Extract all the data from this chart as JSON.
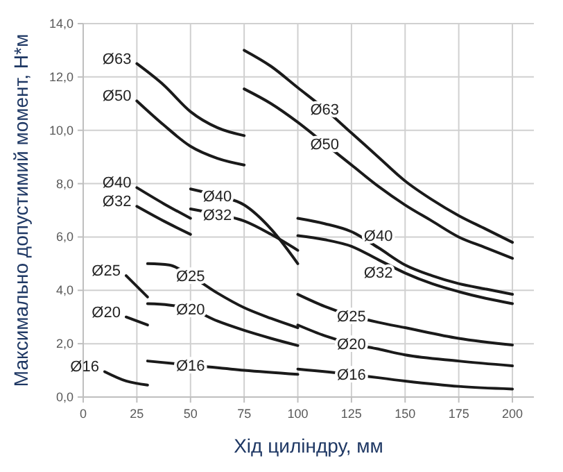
{
  "chart_data": {
    "type": "line",
    "xlabel": "Хід циліндру, мм",
    "ylabel": "Максимально допустимий момент, Н*м",
    "xlim": [
      0,
      210
    ],
    "xticks": [
      0,
      25,
      50,
      75,
      100,
      125,
      150,
      175,
      200
    ],
    "ylim": [
      0,
      14
    ],
    "yticks": [
      {
        "value": 0,
        "label": "0,0"
      },
      {
        "value": 2,
        "label": "2,0"
      },
      {
        "value": 4,
        "label": "4,0"
      },
      {
        "value": 6,
        "label": "6,0"
      },
      {
        "value": 8,
        "label": "8,0"
      },
      {
        "value": 10,
        "label": "10,0"
      },
      {
        "value": 12,
        "label": "12,0"
      },
      {
        "value": 14,
        "label": "14,0"
      }
    ],
    "grid": true,
    "line_style": "solid",
    "marker": "none",
    "series": [
      {
        "name": "Ø63",
        "color": "#1a1a1a",
        "x": [
          25,
          37.5,
          50,
          62.5,
          75
        ],
        "values": [
          12.5,
          11.7,
          10.7,
          10.1,
          9.8
        ]
      },
      {
        "name": "Ø63",
        "color": "#1a1a1a",
        "x": [
          75,
          87.5,
          100,
          112.5,
          125,
          137.5,
          150,
          162.5,
          175,
          187.5,
          200
        ],
        "values": [
          13.0,
          12.4,
          11.6,
          10.8,
          9.9,
          9.0,
          8.1,
          7.4,
          6.8,
          6.3,
          5.8
        ]
      },
      {
        "name": "Ø50",
        "color": "#1a1a1a",
        "x": [
          25,
          37.5,
          50,
          62.5,
          75
        ],
        "values": [
          11.1,
          10.2,
          9.4,
          8.95,
          8.7
        ]
      },
      {
        "name": "Ø50",
        "color": "#1a1a1a",
        "x": [
          75,
          87.5,
          100,
          112.5,
          125,
          137.5,
          150,
          162.5,
          175,
          187.5,
          200
        ],
        "values": [
          11.55,
          11.0,
          10.3,
          9.5,
          8.7,
          7.9,
          7.2,
          6.6,
          6.0,
          5.6,
          5.2
        ]
      },
      {
        "name": "Ø40",
        "color": "#1a1a1a",
        "x": [
          25,
          37.5,
          50
        ],
        "values": [
          7.85,
          7.25,
          6.7
        ]
      },
      {
        "name": "Ø40",
        "color": "#1a1a1a",
        "x": [
          50,
          62.5,
          75,
          87.5,
          100
        ],
        "values": [
          7.8,
          7.55,
          7.2,
          6.3,
          5.0
        ]
      },
      {
        "name": "Ø40",
        "color": "#1a1a1a",
        "x": [
          100,
          112.5,
          125,
          137.5,
          150,
          162.5,
          175,
          187.5,
          200
        ],
        "values": [
          6.7,
          6.5,
          6.2,
          5.6,
          4.95,
          4.55,
          4.25,
          4.05,
          3.85
        ]
      },
      {
        "name": "Ø32",
        "color": "#1a1a1a",
        "x": [
          25,
          37.5,
          50
        ],
        "values": [
          7.15,
          6.6,
          6.1
        ]
      },
      {
        "name": "Ø32",
        "color": "#1a1a1a",
        "x": [
          50,
          62.5,
          75,
          87.5,
          100
        ],
        "values": [
          7.05,
          6.85,
          6.6,
          6.1,
          5.5
        ]
      },
      {
        "name": "Ø32",
        "color": "#1a1a1a",
        "x": [
          100,
          112.5,
          125,
          137.5,
          150,
          162.5,
          175,
          187.5,
          200
        ],
        "values": [
          6.05,
          5.9,
          5.65,
          5.15,
          4.65,
          4.25,
          3.95,
          3.7,
          3.5
        ]
      },
      {
        "name": "Ø25",
        "color": "#1a1a1a",
        "x": [
          20,
          30
        ],
        "values": [
          4.55,
          3.75
        ]
      },
      {
        "name": "Ø25",
        "color": "#1a1a1a",
        "x": [
          30,
          40,
          50,
          62.5,
          75,
          87.5,
          100
        ],
        "values": [
          5.0,
          4.95,
          4.55,
          3.9,
          3.35,
          2.95,
          2.6
        ]
      },
      {
        "name": "Ø25",
        "color": "#1a1a1a",
        "x": [
          100,
          112.5,
          125,
          137.5,
          150,
          175,
          200
        ],
        "values": [
          3.85,
          3.4,
          3.05,
          2.8,
          2.6,
          2.2,
          1.95
        ]
      },
      {
        "name": "Ø20",
        "color": "#1a1a1a",
        "x": [
          20,
          30
        ],
        "values": [
          3.0,
          2.7
        ]
      },
      {
        "name": "Ø20",
        "color": "#1a1a1a",
        "x": [
          30,
          40,
          50,
          62.5,
          75,
          87.5,
          100
        ],
        "values": [
          3.5,
          3.45,
          3.3,
          2.85,
          2.5,
          2.2,
          1.93
        ]
      },
      {
        "name": "Ø20",
        "color": "#1a1a1a",
        "x": [
          100,
          112.5,
          125,
          137.5,
          150,
          175,
          200
        ],
        "values": [
          2.7,
          2.3,
          2.0,
          1.8,
          1.58,
          1.35,
          1.17
        ]
      },
      {
        "name": "Ø16",
        "color": "#1a1a1a",
        "x": [
          10,
          20,
          30
        ],
        "values": [
          0.95,
          0.6,
          0.45
        ]
      },
      {
        "name": "Ø16",
        "color": "#1a1a1a",
        "x": [
          30,
          50,
          75,
          100
        ],
        "values": [
          1.35,
          1.2,
          1.0,
          0.85
        ]
      },
      {
        "name": "Ø16",
        "color": "#1a1a1a",
        "x": [
          100,
          125,
          150,
          175,
          200
        ],
        "values": [
          1.05,
          0.85,
          0.6,
          0.4,
          0.3
        ]
      }
    ]
  }
}
